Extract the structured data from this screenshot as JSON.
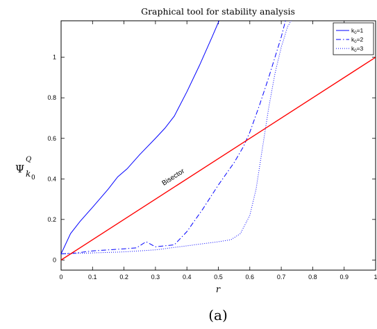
{
  "caption": "(a)",
  "chart_data": {
    "type": "line",
    "title": "Graphical tool for stability analysis",
    "xlabel": "r",
    "ylabel": "Ψ",
    "ylabel_sup": "Q",
    "ylabel_sub": "k",
    "ylabel_subsub": "0",
    "xlim": [
      0,
      1
    ],
    "ylim": [
      -0.05,
      1.18
    ],
    "xticks": [
      0,
      0.1,
      0.2,
      0.3,
      0.4,
      0.5,
      0.6,
      0.7,
      0.8,
      0.9,
      1
    ],
    "xtick_labels": [
      "0",
      "0.1",
      "0.2",
      "0.3",
      "0.4",
      "0.5",
      "0.6",
      "0.7",
      "0.8",
      "0.9",
      "1"
    ],
    "yticks": [
      0,
      0.2,
      0.4,
      0.6,
      0.8,
      1
    ],
    "ytick_labels": [
      "0",
      "0.2",
      "0.4",
      "0.6",
      "0.8",
      "1"
    ],
    "grid": false,
    "legend_position": "top-right",
    "annotation": {
      "text": "Bisector",
      "x": 0.36,
      "y": 0.4
    },
    "series": [
      {
        "name": "k",
        "name_sub": "0",
        "name_suffix": "=1",
        "style": "solid",
        "color": "#0000ff",
        "x": [
          0,
          0.03,
          0.06,
          0.1,
          0.15,
          0.18,
          0.21,
          0.25,
          0.3,
          0.33,
          0.36,
          0.4,
          0.44,
          0.48,
          0.505
        ],
        "y": [
          0.03,
          0.13,
          0.19,
          0.26,
          0.35,
          0.41,
          0.45,
          0.52,
          0.6,
          0.65,
          0.71,
          0.83,
          0.96,
          1.1,
          1.19
        ]
      },
      {
        "name": "k",
        "name_sub": "0",
        "name_suffix": "=2",
        "style": "dashdot",
        "color": "#0000ff",
        "x": [
          0,
          0.05,
          0.1,
          0.15,
          0.2,
          0.24,
          0.27,
          0.3,
          0.33,
          0.36,
          0.4,
          0.45,
          0.5,
          0.55,
          0.58,
          0.6,
          0.63,
          0.66,
          0.68,
          0.7,
          0.715
        ],
        "y": [
          0.03,
          0.035,
          0.045,
          0.05,
          0.055,
          0.06,
          0.09,
          0.065,
          0.07,
          0.075,
          0.14,
          0.25,
          0.37,
          0.48,
          0.56,
          0.63,
          0.76,
          0.9,
          1.0,
          1.1,
          1.19
        ]
      },
      {
        "name": "k",
        "name_sub": "0",
        "name_suffix": "=3",
        "style": "dotted",
        "color": "#0000ff",
        "x": [
          0,
          0.1,
          0.2,
          0.3,
          0.4,
          0.5,
          0.54,
          0.57,
          0.6,
          0.62,
          0.64,
          0.66,
          0.68,
          0.7,
          0.72,
          0.735
        ],
        "y": [
          0.03,
          0.035,
          0.04,
          0.05,
          0.07,
          0.09,
          0.1,
          0.13,
          0.22,
          0.35,
          0.55,
          0.75,
          0.92,
          1.05,
          1.15,
          1.19
        ]
      },
      {
        "name": "Bisector",
        "style": "solid",
        "color": "#ff0000",
        "in_legend": false,
        "x": [
          0,
          1
        ],
        "y": [
          0,
          1
        ]
      }
    ]
  }
}
